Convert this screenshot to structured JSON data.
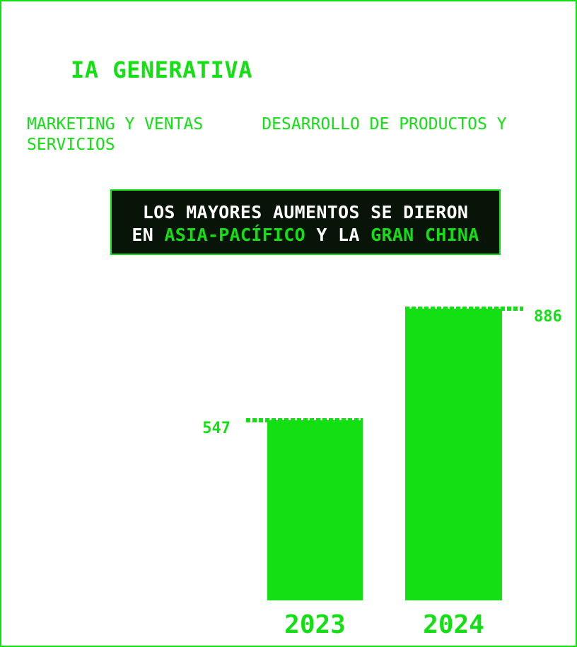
{
  "title": "IA GENERATIVA",
  "subtitle": "MARKETING Y VENTAS      DESARROLLO DE PRODUCTOS Y SERVICIOS",
  "callout": {
    "line1": "LOS MAYORES AUMENTOS SE DIERON",
    "line2_prefix": "EN ",
    "line2_highlight1": "ASIA-PACÍFICO",
    "line2_middle": " Y LA ",
    "line2_highlight2": "GRAN CHINA"
  },
  "colors": {
    "accent": "#13e013",
    "callout_bg": "#071407",
    "callout_text": "#ffffff"
  },
  "chart_data": {
    "type": "bar",
    "categories": [
      "2023",
      "2024"
    ],
    "values": [
      547,
      886
    ],
    "value_labels": [
      "547",
      "886"
    ],
    "title": "IA GENERATIVA",
    "xlabel": "",
    "ylabel": "",
    "ylim": [
      0,
      886
    ],
    "grid": false
  }
}
